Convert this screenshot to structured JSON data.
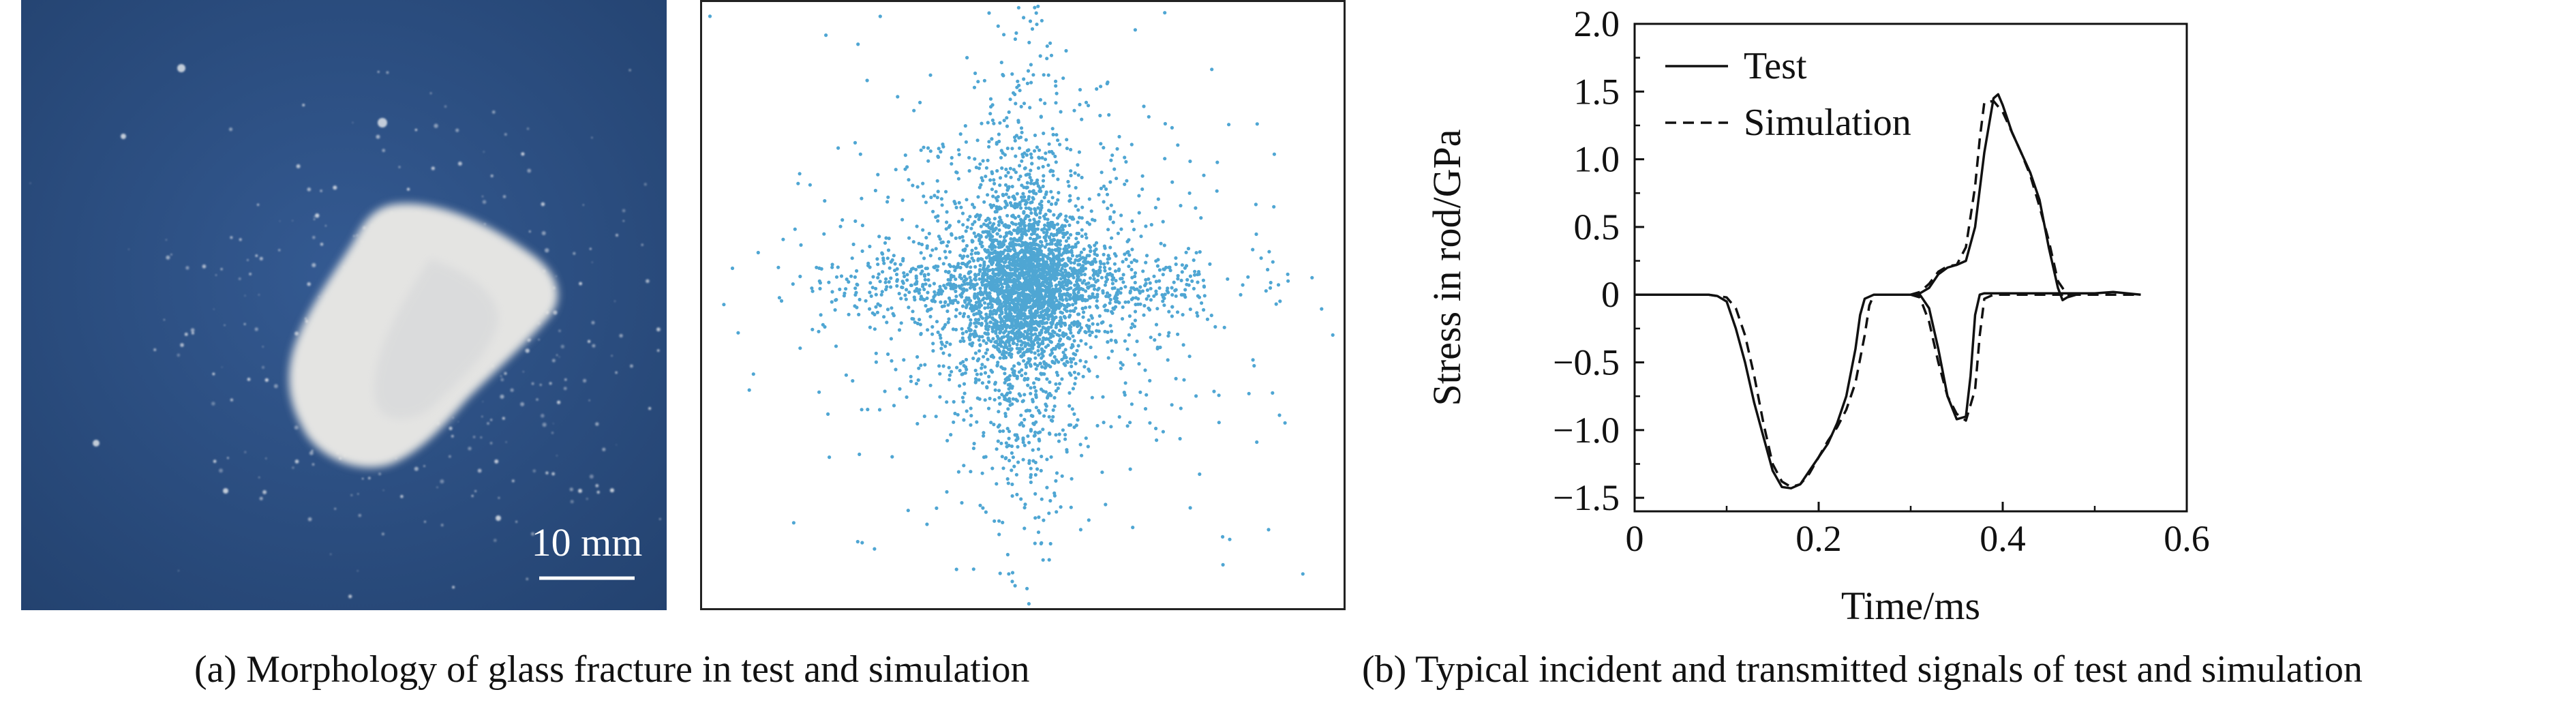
{
  "photo": {
    "scale_label": "10 mm",
    "colors": {
      "background": "#2b4d82",
      "fragment": "#e4e4e2"
    }
  },
  "sim_panel": {
    "point_color": "#4fa6d3"
  },
  "chart_data": {
    "type": "line",
    "xlabel": "Time/ms",
    "ylabel": "Stress in rod/GPa",
    "xlim": [
      0,
      0.6
    ],
    "ylim": [
      -1.6,
      2.0
    ],
    "xticks": [
      "0",
      "0.2",
      "0.4",
      "0.6"
    ],
    "yticks": [
      "−1.5",
      "−1.0",
      "−0.5",
      "0",
      "0.5",
      "1.0",
      "1.5",
      "2.0"
    ],
    "legend": {
      "position": "top-left",
      "entries": [
        "Test",
        "Simulation"
      ]
    },
    "grid": false,
    "series": [
      {
        "name": "Test",
        "style": "solid",
        "segments": [
          [
            [
              0,
              0
            ],
            [
              0.08,
              0
            ],
            [
              0.09,
              -0.01
            ],
            [
              0.1,
              -0.05
            ],
            [
              0.11,
              -0.25
            ],
            [
              0.12,
              -0.5
            ],
            [
              0.13,
              -0.8
            ],
            [
              0.14,
              -1.05
            ],
            [
              0.15,
              -1.3
            ],
            [
              0.16,
              -1.42
            ],
            [
              0.17,
              -1.43
            ],
            [
              0.18,
              -1.4
            ],
            [
              0.19,
              -1.3
            ],
            [
              0.2,
              -1.2
            ],
            [
              0.21,
              -1.1
            ],
            [
              0.22,
              -0.95
            ],
            [
              0.23,
              -0.75
            ],
            [
              0.24,
              -0.4
            ],
            [
              0.245,
              -0.15
            ],
            [
              0.25,
              -0.03
            ],
            [
              0.26,
              0
            ],
            [
              0.31,
              0
            ],
            [
              0.32,
              -0.1
            ],
            [
              0.33,
              -0.4
            ],
            [
              0.34,
              -0.75
            ],
            [
              0.35,
              -0.92
            ],
            [
              0.36,
              -0.9
            ],
            [
              0.365,
              -0.6
            ],
            [
              0.37,
              -0.15
            ],
            [
              0.375,
              0
            ],
            [
              0.38,
              0.01
            ],
            [
              0.47,
              0.01
            ],
            [
              0.5,
              0.01
            ],
            [
              0.52,
              0.02
            ],
            [
              0.55,
              0
            ]
          ],
          [
            [
              0.26,
              0
            ],
            [
              0.3,
              0
            ],
            [
              0.31,
              0.01
            ],
            [
              0.32,
              0.05
            ],
            [
              0.33,
              0.15
            ],
            [
              0.34,
              0.2
            ],
            [
              0.35,
              0.22
            ],
            [
              0.36,
              0.25
            ],
            [
              0.37,
              0.5
            ],
            [
              0.38,
              1.05
            ],
            [
              0.39,
              1.45
            ],
            [
              0.395,
              1.48
            ],
            [
              0.4,
              1.4
            ],
            [
              0.41,
              1.2
            ],
            [
              0.42,
              1.05
            ],
            [
              0.43,
              0.9
            ],
            [
              0.44,
              0.7
            ],
            [
              0.45,
              0.35
            ],
            [
              0.46,
              0.05
            ],
            [
              0.465,
              -0.04
            ],
            [
              0.47,
              -0.02
            ],
            [
              0.48,
              0
            ]
          ]
        ]
      },
      {
        "name": "Simulation",
        "style": "dashed",
        "segments": [
          [
            [
              0,
              0
            ],
            [
              0.08,
              0
            ],
            [
              0.1,
              -0.02
            ],
            [
              0.11,
              -0.1
            ],
            [
              0.12,
              -0.3
            ],
            [
              0.13,
              -0.6
            ],
            [
              0.14,
              -0.95
            ],
            [
              0.15,
              -1.25
            ],
            [
              0.16,
              -1.38
            ],
            [
              0.17,
              -1.42
            ],
            [
              0.18,
              -1.4
            ],
            [
              0.19,
              -1.32
            ],
            [
              0.2,
              -1.2
            ],
            [
              0.21,
              -1.08
            ],
            [
              0.22,
              -0.98
            ],
            [
              0.23,
              -0.85
            ],
            [
              0.24,
              -0.65
            ],
            [
              0.25,
              -0.3
            ],
            [
              0.255,
              -0.08
            ],
            [
              0.26,
              0
            ],
            [
              0.3,
              0
            ],
            [
              0.31,
              -0.02
            ],
            [
              0.32,
              -0.2
            ],
            [
              0.33,
              -0.5
            ],
            [
              0.34,
              -0.75
            ],
            [
              0.35,
              -0.88
            ],
            [
              0.36,
              -0.93
            ],
            [
              0.37,
              -0.7
            ],
            [
              0.375,
              -0.3
            ],
            [
              0.38,
              -0.03
            ],
            [
              0.39,
              0
            ],
            [
              0.55,
              0
            ]
          ],
          [
            [
              0.26,
              0
            ],
            [
              0.3,
              0
            ],
            [
              0.31,
              0.02
            ],
            [
              0.32,
              0.08
            ],
            [
              0.33,
              0.17
            ],
            [
              0.34,
              0.21
            ],
            [
              0.35,
              0.22
            ],
            [
              0.36,
              0.35
            ],
            [
              0.37,
              0.8
            ],
            [
              0.375,
              1.15
            ],
            [
              0.38,
              1.42
            ],
            [
              0.39,
              1.43
            ],
            [
              0.4,
              1.35
            ],
            [
              0.41,
              1.2
            ],
            [
              0.42,
              1.05
            ],
            [
              0.43,
              0.88
            ],
            [
              0.44,
              0.65
            ],
            [
              0.45,
              0.4
            ],
            [
              0.46,
              0.1
            ],
            [
              0.47,
              0
            ],
            [
              0.48,
              0
            ]
          ]
        ]
      }
    ]
  },
  "captions": {
    "a": "(a) Morphology of glass fracture in test and simulation",
    "b": "(b) Typical incident and transmitted signals of test and simulation"
  }
}
